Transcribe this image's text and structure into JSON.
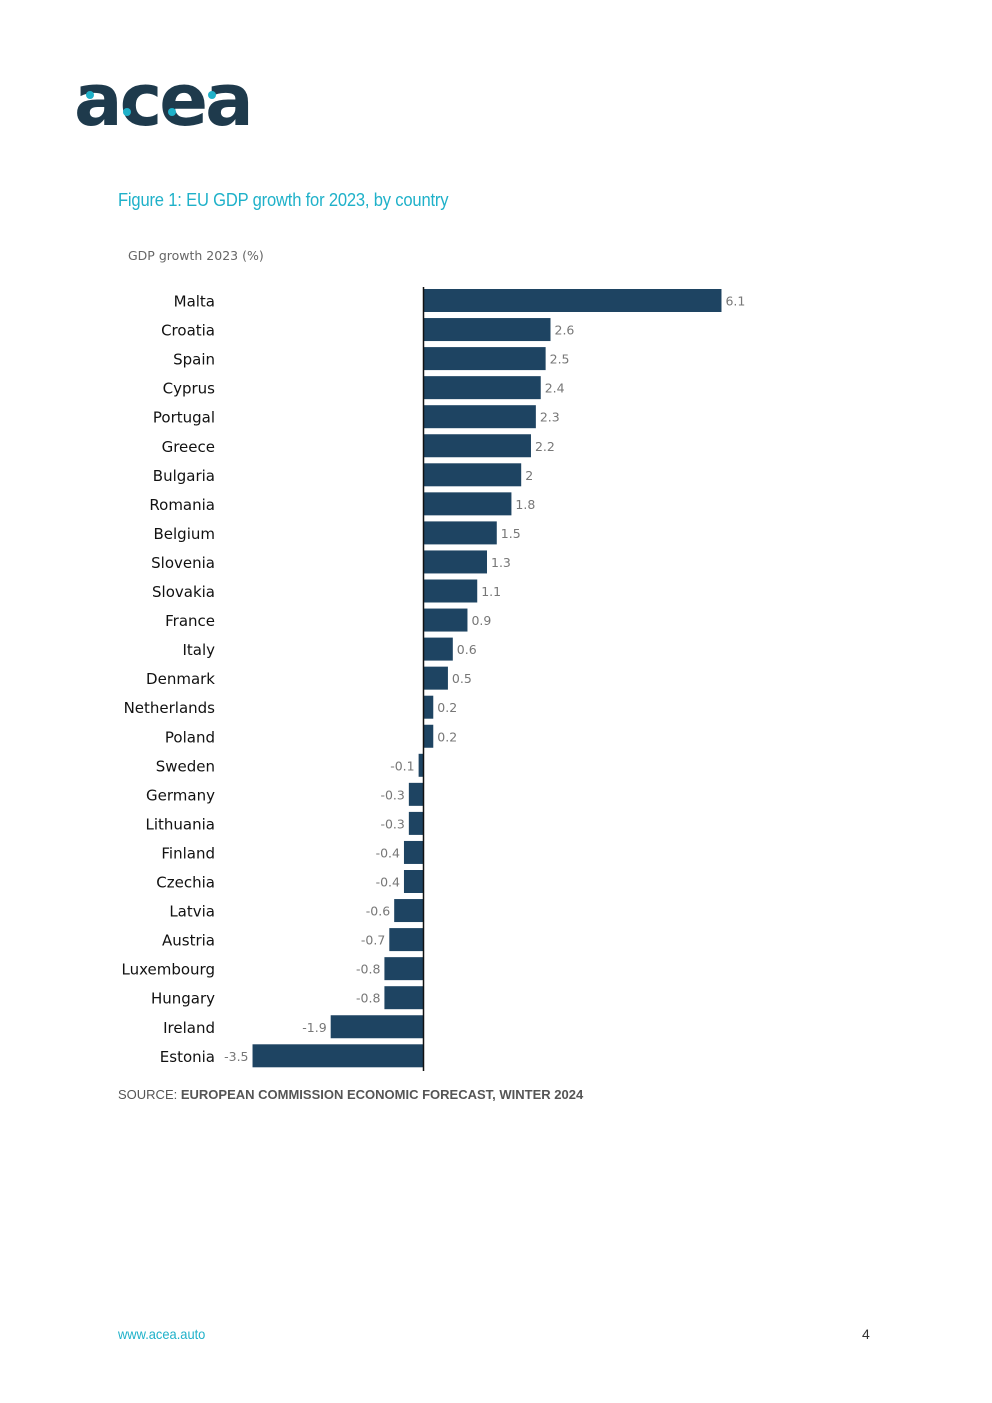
{
  "header": {
    "logo_text": "acea",
    "logo_icon": "acea-logo"
  },
  "figure": {
    "title": "Figure 1: EU GDP growth for 2023, by country"
  },
  "chart_data": {
    "type": "bar",
    "orientation": "horizontal",
    "subtitle": "GDP growth 2023 (%)",
    "xlabel": "",
    "ylabel": "",
    "grid": false,
    "bar_color": "#1e4462",
    "categories": [
      "Malta",
      "Croatia",
      "Spain",
      "Cyprus",
      "Portugal",
      "Greece",
      "Bulgaria",
      "Romania",
      "Belgium",
      "Slovenia",
      "Slovakia",
      "France",
      "Italy",
      "Denmark",
      "Netherlands",
      "Poland",
      "Sweden",
      "Germany",
      "Lithuania",
      "Finland",
      "Czechia",
      "Latvia",
      "Austria",
      "Luxembourg",
      "Hungary",
      "Ireland",
      "Estonia"
    ],
    "values": [
      6.1,
      2.6,
      2.5,
      2.4,
      2.3,
      2.2,
      2,
      1.8,
      1.5,
      1.3,
      1.1,
      0.9,
      0.6,
      0.5,
      0.2,
      0.2,
      -0.1,
      -0.3,
      -0.3,
      -0.4,
      -0.4,
      -0.6,
      -0.7,
      -0.8,
      -0.8,
      -1.9,
      -3.5
    ],
    "xlim": [
      -3.5,
      6.1
    ]
  },
  "source": {
    "label": "SOURCE:",
    "value": "EUROPEAN COMMISSION ECONOMIC FORECAST, WINTER 2024"
  },
  "footer": {
    "url": "www.acea.auto",
    "page_number": "4"
  },
  "colors": {
    "accent": "#1fb1c9",
    "logo_dark": "#1e3a4c",
    "bar": "#1e4462"
  }
}
